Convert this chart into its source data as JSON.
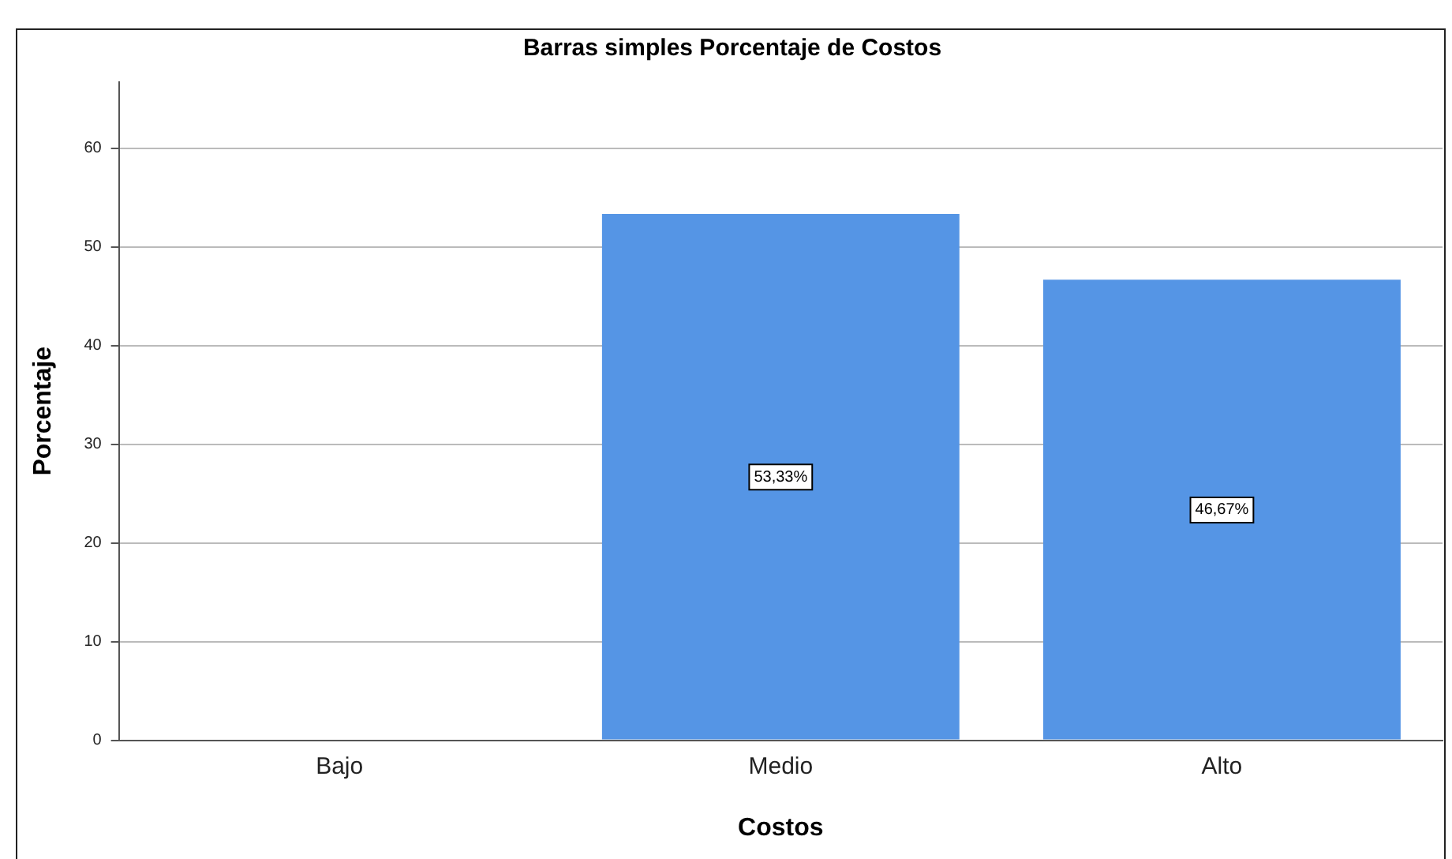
{
  "chart_data": {
    "type": "bar",
    "title": "Barras simples Porcentaje de Costos",
    "xlabel": "Costos",
    "ylabel": "Porcentaje",
    "categories": [
      "Bajo",
      "Medio",
      "Alto"
    ],
    "values": [
      0,
      53.33,
      46.67
    ],
    "value_labels": [
      null,
      "53,33%",
      "46,67%"
    ],
    "color": "#5595e5",
    "ylim": [
      0,
      66.7
    ],
    "yticks": [
      0,
      10,
      20,
      30,
      40,
      50,
      60
    ],
    "grid": "y",
    "legend": false
  }
}
